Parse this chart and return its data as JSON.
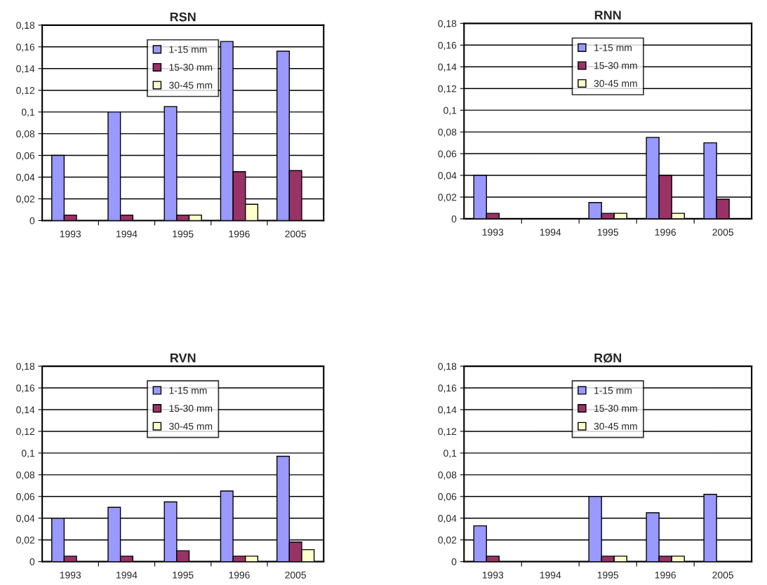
{
  "chart_data": [
    {
      "type": "bar",
      "title": "RSN",
      "categories": [
        "1993",
        "1994",
        "1995",
        "1996",
        "2005"
      ],
      "series": [
        {
          "name": "1-15 mm",
          "color": "#9999ff",
          "values": [
            0.06,
            0.1,
            0.105,
            0.165,
            0.156
          ]
        },
        {
          "name": "15-30 mm",
          "color": "#993366",
          "values": [
            0.005,
            0.005,
            0.005,
            0.045,
            0.046
          ]
        },
        {
          "name": "30-45 mm",
          "color": "#ffffcc",
          "values": [
            null,
            null,
            0.005,
            0.015,
            null
          ]
        }
      ],
      "ylim": [
        0,
        0.18
      ],
      "yticks": [
        {
          "value": 0,
          "label": "0"
        },
        {
          "value": 0.02,
          "label": "0,02"
        },
        {
          "value": 0.04,
          "label": "0,04"
        },
        {
          "value": 0.06,
          "label": "0,06"
        },
        {
          "value": 0.08,
          "label": "0,08"
        },
        {
          "value": 0.1,
          "label": "0,1"
        },
        {
          "value": 0.12,
          "label": "0,12"
        },
        {
          "value": 0.14,
          "label": "0,14"
        },
        {
          "value": 0.16,
          "label": "0,16"
        },
        {
          "value": 0.18,
          "label": "0,18"
        }
      ],
      "grid": "y",
      "legend": "top"
    },
    {
      "type": "bar",
      "title": "RNN",
      "categories": [
        "1993",
        "1994",
        "1995",
        "1996",
        "2005"
      ],
      "series": [
        {
          "name": "1-15 mm",
          "color": "#9999ff",
          "values": [
            0.04,
            null,
            0.015,
            0.075,
            0.07
          ]
        },
        {
          "name": "15-30 mm",
          "color": "#993366",
          "values": [
            0.005,
            null,
            0.005,
            0.04,
            0.018
          ]
        },
        {
          "name": "30-45 mm",
          "color": "#ffffcc",
          "values": [
            null,
            null,
            0.005,
            0.005,
            null
          ]
        }
      ],
      "ylim": [
        0,
        0.18
      ],
      "yticks": [
        {
          "value": 0,
          "label": "0"
        },
        {
          "value": 0.02,
          "label": "0,02"
        },
        {
          "value": 0.04,
          "label": "0,04"
        },
        {
          "value": 0.06,
          "label": "0,06"
        },
        {
          "value": 0.08,
          "label": "0,08"
        },
        {
          "value": 0.1,
          "label": "0,1"
        },
        {
          "value": 0.12,
          "label": "0,12"
        },
        {
          "value": 0.14,
          "label": "0,14"
        },
        {
          "value": 0.16,
          "label": "0,16"
        },
        {
          "value": 0.18,
          "label": "0,18"
        }
      ],
      "grid": "y",
      "legend": "top"
    },
    {
      "type": "bar",
      "title": "RVN",
      "categories": [
        "1993",
        "1994",
        "1995",
        "1996",
        "2005"
      ],
      "series": [
        {
          "name": "1-15 mm",
          "color": "#9999ff",
          "values": [
            0.04,
            0.05,
            0.055,
            0.065,
            0.097
          ]
        },
        {
          "name": "15-30 mm",
          "color": "#993366",
          "values": [
            0.005,
            0.005,
            0.01,
            0.005,
            0.018
          ]
        },
        {
          "name": "30-45 mm",
          "color": "#ffffcc",
          "values": [
            null,
            null,
            null,
            0.005,
            0.011
          ]
        }
      ],
      "ylim": [
        0,
        0.18
      ],
      "yticks": [
        {
          "value": 0,
          "label": "0"
        },
        {
          "value": 0.02,
          "label": "0,02"
        },
        {
          "value": 0.04,
          "label": "0,04"
        },
        {
          "value": 0.06,
          "label": "0,06"
        },
        {
          "value": 0.08,
          "label": "0,08"
        },
        {
          "value": 0.1,
          "label": "0,1"
        },
        {
          "value": 0.12,
          "label": "0,12"
        },
        {
          "value": 0.14,
          "label": "0,14"
        },
        {
          "value": 0.16,
          "label": "0,16"
        },
        {
          "value": 0.18,
          "label": "0,18"
        }
      ],
      "grid": "y",
      "legend": "top"
    },
    {
      "type": "bar",
      "title": "RØN",
      "categories": [
        "1993",
        "1994",
        "1995",
        "1996",
        "2005"
      ],
      "series": [
        {
          "name": "1-15 mm",
          "color": "#9999ff",
          "values": [
            0.033,
            null,
            0.06,
            0.045,
            0.062
          ]
        },
        {
          "name": "15-30 mm",
          "color": "#993366",
          "values": [
            0.005,
            null,
            0.005,
            0.005,
            null
          ]
        },
        {
          "name": "30-45 mm",
          "color": "#ffffcc",
          "values": [
            null,
            null,
            0.005,
            0.005,
            null
          ]
        }
      ],
      "ylim": [
        0,
        0.18
      ],
      "yticks": [
        {
          "value": 0,
          "label": "0"
        },
        {
          "value": 0.02,
          "label": "0,02"
        },
        {
          "value": 0.04,
          "label": "0,04"
        },
        {
          "value": 0.06,
          "label": "0,06"
        },
        {
          "value": 0.08,
          "label": "0,08"
        },
        {
          "value": 0.1,
          "label": "0,1"
        },
        {
          "value": 0.12,
          "label": "0,12"
        },
        {
          "value": 0.14,
          "label": "0,14"
        },
        {
          "value": 0.16,
          "label": "0,16"
        },
        {
          "value": 0.18,
          "label": "0,18"
        }
      ],
      "grid": "y",
      "legend": "top"
    }
  ]
}
